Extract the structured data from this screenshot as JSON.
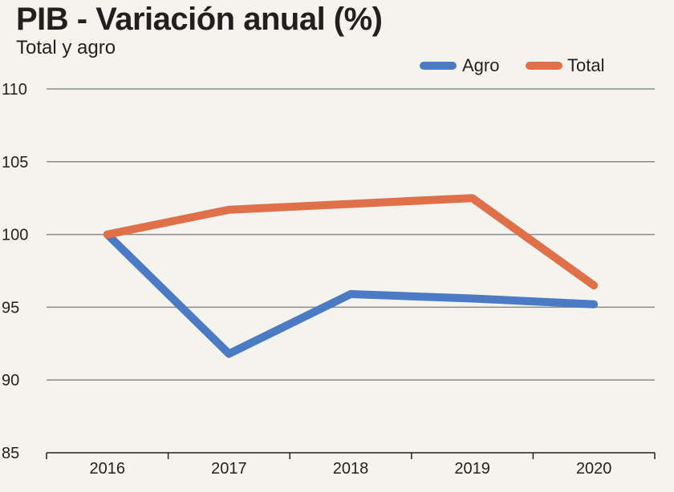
{
  "chart_data": {
    "type": "line",
    "title": "PIB - Variación anual (%)",
    "subtitle": "Total y agro",
    "categories": [
      "2016",
      "2017",
      "2018",
      "2019",
      "2020"
    ],
    "ylim": [
      85,
      110
    ],
    "yticks": [
      85,
      90,
      95,
      100,
      105,
      110
    ],
    "grid": true,
    "legend_position": "top-right",
    "series": [
      {
        "name": "Agro",
        "color": "#4a7bc4",
        "values": [
          100,
          91.8,
          95.9,
          95.6,
          95.2
        ]
      },
      {
        "name": "Total",
        "color": "#e0704a",
        "values": [
          100,
          101.7,
          102.1,
          102.5,
          96.5
        ]
      }
    ]
  }
}
